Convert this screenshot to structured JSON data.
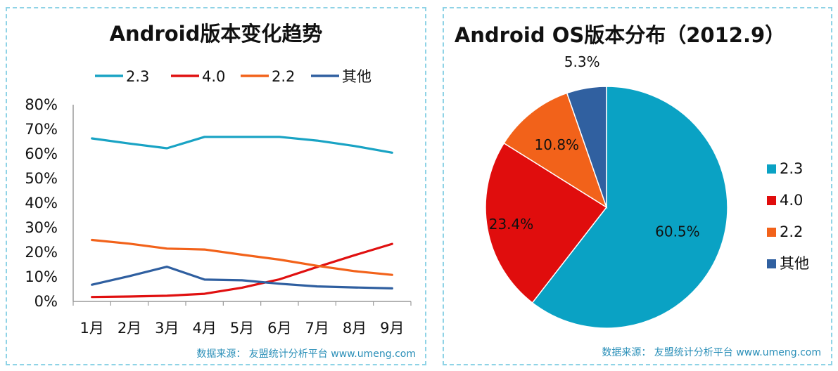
{
  "chart_data": [
    {
      "type": "line",
      "title": "Android版本变化趋势",
      "categories": [
        "1月",
        "2月",
        "3月",
        "4月",
        "5月",
        "6月",
        "7月",
        "8月",
        "9月"
      ],
      "series": [
        {
          "name": "2.3",
          "color": "#19a3c4",
          "values": [
            66.3,
            64.2,
            62.3,
            66.9,
            66.9,
            66.9,
            65.4,
            63.2,
            60.5
          ]
        },
        {
          "name": "4.0",
          "color": "#e01010",
          "values": [
            1.8,
            2.0,
            2.3,
            3.1,
            5.6,
            9.0,
            14.0,
            18.8,
            23.4
          ]
        },
        {
          "name": "2.2",
          "color": "#f2621a",
          "values": [
            25.0,
            23.5,
            21.5,
            21.1,
            19.0,
            17.0,
            14.5,
            12.3,
            10.8
          ]
        },
        {
          "name": "其他",
          "color": "#2f5fa0",
          "values": [
            6.8,
            10.3,
            14.1,
            8.9,
            8.6,
            7.2,
            6.1,
            5.7,
            5.3
          ]
        }
      ],
      "ylim": [
        0,
        80
      ],
      "yticks": [
        "80%",
        "70%",
        "60%",
        "50%",
        "40%",
        "30%",
        "20%",
        "10%",
        "0%"
      ],
      "legend_position": "top",
      "grid": false,
      "source": "数据来源： 友盟统计分析平台 www.umeng.com"
    },
    {
      "type": "pie",
      "title": "Android OS版本分布（2012.9）",
      "slices": [
        {
          "name": "2.3",
          "value": 60.5,
          "label": "60.5%",
          "color": "#0aa2c4"
        },
        {
          "name": "4.0",
          "value": 23.4,
          "label": "23.4%",
          "color": "#e00d0d"
        },
        {
          "name": "2.2",
          "value": 10.8,
          "label": "10.8%",
          "color": "#f2621a"
        },
        {
          "name": "其他",
          "value": 5.3,
          "label": "5.3%",
          "color": "#3060a0"
        }
      ],
      "legend_position": "right",
      "source": "数据来源： 友盟统计分析平台 www.umeng.com"
    }
  ]
}
